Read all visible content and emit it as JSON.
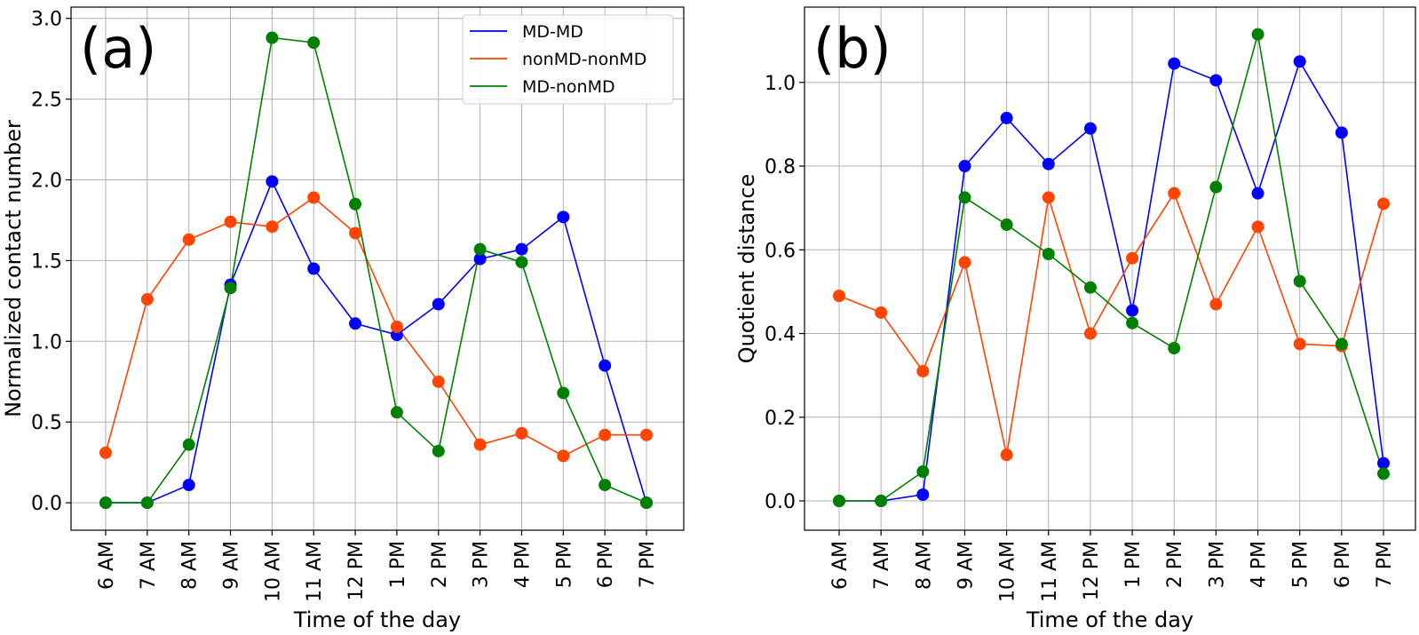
{
  "colors": {
    "MD-MD": "#0000ff",
    "nonMD-nonMD": "#ff4500",
    "MD-nonMD": "#008000",
    "grid": "#b0b0b0"
  },
  "chart_data": [
    {
      "type": "line",
      "panel_label": "(a)",
      "xlabel": "Time of the day",
      "ylabel": "Normalized contact number",
      "categories": [
        "6 AM",
        "7 AM",
        "8 AM",
        "9 AM",
        "10 AM",
        "11 AM",
        "12 PM",
        "1 PM",
        "2 PM",
        "3 PM",
        "4 PM",
        "5 PM",
        "6 PM",
        "7 PM"
      ],
      "ylim": [
        -0.17,
        3.07
      ],
      "yticks": [
        "0.0",
        "0.5",
        "1.0",
        "1.5",
        "2.0",
        "2.5",
        "3.0"
      ],
      "grid": true,
      "legend": {
        "placement": "top-right",
        "entries": [
          "MD-MD",
          "nonMD-nonMD",
          "MD-nonMD"
        ]
      },
      "series": [
        {
          "name": "MD-MD",
          "values": [
            0.0,
            0.0,
            0.11,
            1.35,
            1.99,
            1.45,
            1.11,
            1.04,
            1.23,
            1.51,
            1.57,
            1.77,
            0.85,
            0.0
          ]
        },
        {
          "name": "nonMD-nonMD",
          "values": [
            0.31,
            1.26,
            1.63,
            1.74,
            1.71,
            1.89,
            1.67,
            1.09,
            0.75,
            0.36,
            0.43,
            0.29,
            0.42,
            0.42
          ]
        },
        {
          "name": "MD-nonMD",
          "values": [
            0.0,
            0.0,
            0.36,
            1.33,
            2.88,
            2.85,
            1.85,
            0.56,
            0.32,
            1.57,
            1.49,
            0.68,
            0.11,
            0.0
          ]
        }
      ]
    },
    {
      "type": "line",
      "panel_label": "(b)",
      "xlabel": "Time of the day",
      "ylabel": "Quotient distance",
      "categories": [
        "6 AM",
        "7 AM",
        "8 AM",
        "9 AM",
        "10 AM",
        "11 AM",
        "12 PM",
        "1 PM",
        "2 PM",
        "3 PM",
        "4 PM",
        "5 PM",
        "6 PM",
        "7 PM"
      ],
      "ylim": [
        -0.07,
        1.18
      ],
      "yticks": [
        "0.0",
        "0.2",
        "0.4",
        "0.6",
        "0.8",
        "1.0"
      ],
      "grid": true,
      "series": [
        {
          "name": "MD-MD",
          "values": [
            0.0,
            0.0,
            0.015,
            0.8,
            0.915,
            0.805,
            0.89,
            0.455,
            1.045,
            1.005,
            0.735,
            1.05,
            0.88,
            0.09
          ]
        },
        {
          "name": "nonMD-nonMD",
          "values": [
            0.49,
            0.45,
            0.31,
            0.57,
            0.11,
            0.725,
            0.4,
            0.58,
            0.735,
            0.47,
            0.655,
            0.375,
            0.37,
            0.71
          ]
        },
        {
          "name": "MD-nonMD",
          "values": [
            0.0,
            0.0,
            0.07,
            0.725,
            0.66,
            0.59,
            0.51,
            0.425,
            0.365,
            0.75,
            1.115,
            0.525,
            0.375,
            0.065
          ]
        }
      ]
    }
  ]
}
